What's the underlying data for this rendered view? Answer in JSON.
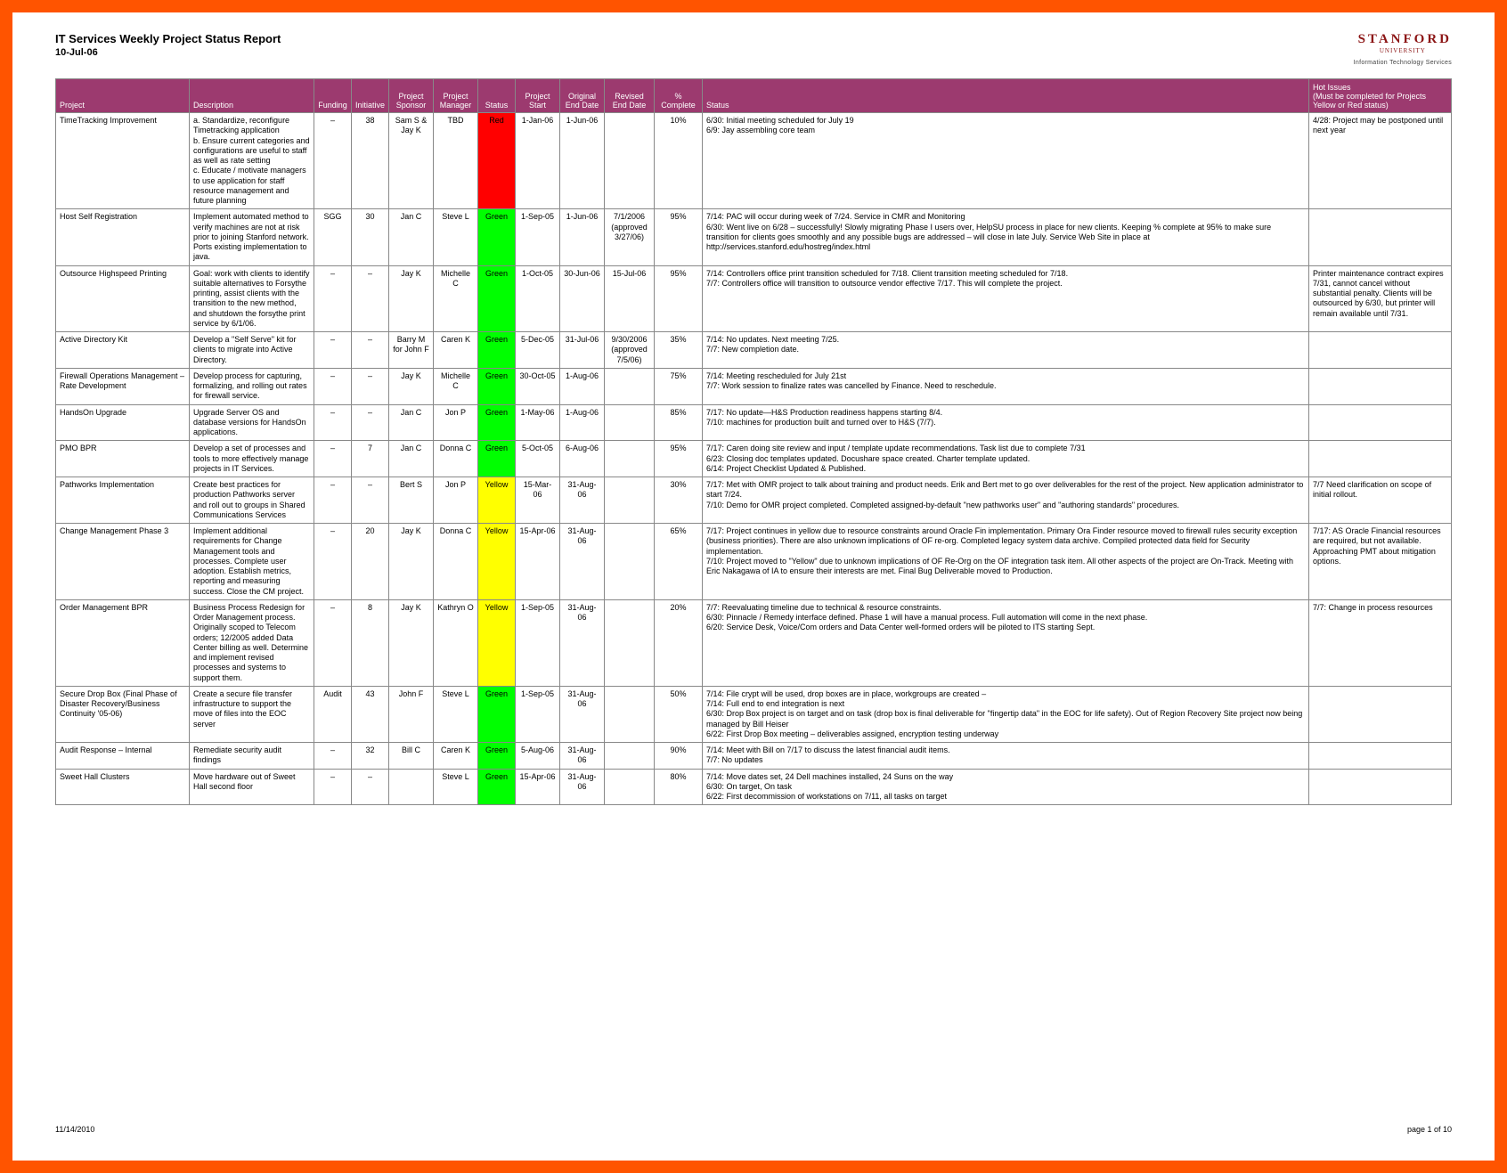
{
  "colors": {
    "frame_border": "#ff5400",
    "header_bg": "#9c3a6f",
    "header_fg": "#ffffff",
    "logo_color": "#8c1515",
    "grid_border": "#888888",
    "status_red": "#ff0000",
    "status_green": "#00ff00",
    "status_yellow": "#ffff00"
  },
  "header": {
    "title": "IT Services Weekly Project Status Report",
    "date": "10-Jul-06",
    "logo_main": "STANFORD",
    "logo_sub": "UNIVERSITY",
    "logo_tag": "Information Technology Services"
  },
  "columns": [
    "Project",
    "Description",
    "Funding",
    "Initiative",
    "Project Sponsor",
    "Project Manager",
    "Status",
    "Project Start",
    "Original End Date",
    "Revised End Date",
    "% Complete",
    "Status",
    "Hot Issues\n(Must be completed for Projects Yellow or Red status)"
  ],
  "status_map": {
    "Red": "#ff0000",
    "Green": "#00ff00",
    "Yellow": "#ffff00"
  },
  "rows": [
    {
      "project": "TimeTracking Improvement",
      "desc": "a. Standardize, reconfigure Timetracking application\nb. Ensure current categories and configurations are useful to staff as well as rate setting\nc. Educate / motivate managers to use application for staff resource management and future planning",
      "funding": "–",
      "initiative": "38",
      "sponsor": "Sam S & Jay K",
      "manager": "TBD",
      "status": "Red",
      "status_label": "Red",
      "start": "1-Jan-06",
      "oend": "1-Jun-06",
      "rend": "",
      "pct": "10%",
      "notes": "6/30: Initial meeting scheduled for July 19\n6/9: Jay assembling core team",
      "hot": "4/28: Project may be postponed until next year"
    },
    {
      "project": "Host Self Registration",
      "desc": "Implement automated method to verify machines are not at risk prior to joining Stanford network. Ports existing implementation to java.",
      "funding": "SGG",
      "initiative": "30",
      "sponsor": "Jan C",
      "manager": "Steve L",
      "status": "Green",
      "status_label": "Green",
      "start": "1-Sep-05",
      "oend": "1-Jun-06",
      "rend": "7/1/2006\n(approved 3/27/06)",
      "pct": "95%",
      "notes": "7/14: PAC will occur during week of 7/24. Service in CMR and Monitoring\n6/30: Went live on 6/28 – successfully! Slowly migrating Phase I users over, HelpSU process in place for new clients. Keeping % complete at 95% to make sure transition for clients goes smoothly and any possible bugs are addressed – will close in late July. Service Web Site in place at http://services.stanford.edu/hostreg/index.html",
      "hot": ""
    },
    {
      "project": "Outsource Highspeed Printing",
      "desc": "Goal: work with clients to identify suitable alternatives to Forsythe printing, assist clients with the transition to the new method, and shutdown the forsythe print service by 6/1/06.",
      "funding": "–",
      "initiative": "–",
      "sponsor": "Jay K",
      "manager": "Michelle C",
      "status": "Green",
      "status_label": "Green",
      "start": "1-Oct-05",
      "oend": "30-Jun-06",
      "rend": "15-Jul-06",
      "pct": "95%",
      "notes": "7/14: Controllers office print transition scheduled for 7/18. Client transition meeting scheduled for 7/18.\n7/7: Controllers office will transition to outsource vendor effective 7/17. This will complete the project.",
      "hot": "Printer maintenance contract expires 7/31, cannot cancel without substantial penalty. Clients will be outsourced by 6/30, but printer will remain available until 7/31."
    },
    {
      "project": "Active Directory Kit",
      "desc": "Develop a \"Self Serve\" kit for clients to migrate into Active Directory.",
      "funding": "–",
      "initiative": "–",
      "sponsor": "Barry M for John F",
      "manager": "Caren K",
      "status": "Green",
      "status_label": "Green",
      "start": "5-Dec-05",
      "oend": "31-Jul-06",
      "rend": "9/30/2006\n(approved 7/5/06)",
      "pct": "35%",
      "notes": "7/14: No updates. Next meeting 7/25.\n7/7: New completion date.",
      "hot": ""
    },
    {
      "project": "Firewall Operations Management – Rate Development",
      "desc": "Develop process for capturing, formalizing, and rolling out rates for firewall service.",
      "funding": "–",
      "initiative": "–",
      "sponsor": "Jay K",
      "manager": "Michelle C",
      "status": "Green",
      "status_label": "Green",
      "start": "30-Oct-05",
      "oend": "1-Aug-06",
      "rend": "",
      "pct": "75%",
      "notes": "7/14: Meeting rescheduled for July 21st\n7/7: Work session to finalize rates was cancelled by Finance. Need to reschedule.",
      "hot": ""
    },
    {
      "project": "HandsOn Upgrade",
      "desc": "Upgrade Server OS and database versions for HandsOn applications.",
      "funding": "–",
      "initiative": "–",
      "sponsor": "Jan C",
      "manager": "Jon P",
      "status": "Green",
      "status_label": "Green",
      "start": "1-May-06",
      "oend": "1-Aug-06",
      "rend": "",
      "pct": "85%",
      "notes": "7/17: No update—H&S Production readiness happens starting 8/4.\n7/10: machines for production built and turned over to H&S (7/7).",
      "hot": ""
    },
    {
      "project": "PMO BPR",
      "desc": "Develop a set of processes and tools to more effectively manage projects in IT Services.",
      "funding": "–",
      "initiative": "7",
      "sponsor": "Jan C",
      "manager": "Donna C",
      "status": "Green",
      "status_label": "Green",
      "start": "5-Oct-05",
      "oend": "6-Aug-06",
      "rend": "",
      "pct": "95%",
      "notes": "7/17: Caren doing site review and input / template update recommendations. Task list due to complete 7/31\n6/23: Closing doc templates updated. Docushare space created. Charter template updated.\n6/14: Project Checklist Updated & Published.",
      "hot": ""
    },
    {
      "project": "Pathworks Implementation",
      "desc": "Create best practices for production Pathworks server and roll out to groups in Shared Communications Services",
      "funding": "–",
      "initiative": "–",
      "sponsor": "Bert S",
      "manager": "Jon P",
      "status": "Yellow",
      "status_label": "Yellow",
      "start": "15-Mar-06",
      "oend": "31-Aug-06",
      "rend": "",
      "pct": "30%",
      "notes": "7/17: Met with OMR project to talk about training and product needs. Erik and Bert met to go over deliverables for the rest of the project. New application administrator to start 7/24.\n7/10: Demo for OMR project completed. Completed assigned-by-default \"new pathworks user\" and \"authoring standards\" procedures.",
      "hot": "7/7 Need clarification on scope of initial rollout."
    },
    {
      "project": "Change Management Phase 3",
      "desc": "Implement additional requirements for Change Management tools and processes. Complete user adoption. Establish metrics, reporting and measuring success. Close the CM project.",
      "funding": "–",
      "initiative": "20",
      "sponsor": "Jay K",
      "manager": "Donna C",
      "status": "Yellow",
      "status_label": "Yellow",
      "start": "15-Apr-06",
      "oend": "31-Aug-06",
      "rend": "",
      "pct": "65%",
      "notes": "7/17: Project continues in yellow due to resource constraints around Oracle Fin implementation. Primary Ora Finder resource moved to firewall rules security exception (business priorities). There are also unknown implications of OF re-org. Completed legacy system data archive. Compiled protected data field for Security implementation.\n7/10: Project moved to \"Yellow\" due to unknown implications of OF Re-Org on the OF integration task item. All other aspects of the project are On-Track. Meeting with Eric Nakagawa of IA to ensure their interests are met. Final Bug Deliverable moved to Production.",
      "hot": "7/17: AS Oracle Financial resources are required, but not available. Approaching PMT about mitigation options."
    },
    {
      "project": "Order Management BPR",
      "desc": "Business Process Redesign for Order Management process. Originally scoped to Telecom orders; 12/2005 added Data Center billing as well. Determine and implement revised processes and systems to support them.",
      "funding": "–",
      "initiative": "8",
      "sponsor": "Jay K",
      "manager": "Kathryn O",
      "status": "Yellow",
      "status_label": "Yellow",
      "start": "1-Sep-05",
      "oend": "31-Aug-06",
      "rend": "",
      "pct": "20%",
      "notes": "7/7: Reevaluating timeline due to technical & resource constraints.\n6/30: Pinnacle / Remedy interface defined. Phase 1 will have a manual process. Full automation will come in the next phase.\n6/20: Service Desk, Voice/Com orders and Data Center well-formed orders will be piloted to ITS starting Sept.",
      "hot": "7/7: Change in process resources"
    },
    {
      "project": "Secure Drop Box (Final Phase of Disaster Recovery/Business Continuity '05-06)",
      "desc": "Create a secure file transfer infrastructure to support the move of files into the EOC server",
      "funding": "Audit",
      "initiative": "43",
      "sponsor": "John F",
      "manager": "Steve L",
      "status": "Green",
      "status_label": "Green",
      "start": "1-Sep-05",
      "oend": "31-Aug-06",
      "rend": "",
      "pct": "50%",
      "notes": "7/14: File crypt will be used, drop boxes are in place, workgroups are created –\n7/14: Full end to end integration is next\n6/30: Drop Box project is on target and on task (drop box is final deliverable for \"fingertip data\" in the EOC for life safety). Out of Region Recovery Site project now being managed by Bill Heiser\n6/22: First Drop Box meeting – deliverables assigned, encryption testing underway",
      "hot": ""
    },
    {
      "project": "Audit Response – Internal",
      "desc": "Remediate security audit findings",
      "funding": "–",
      "initiative": "32",
      "sponsor": "Bill C",
      "manager": "Caren K",
      "status": "Green",
      "status_label": "Green",
      "start": "5-Aug-06",
      "oend": "31-Aug-06",
      "rend": "",
      "pct": "90%",
      "notes": "7/14: Meet with Bill on 7/17 to discuss the latest financial audit items.\n7/7: No updates",
      "hot": ""
    },
    {
      "project": "Sweet Hall Clusters",
      "desc": "Move hardware out of Sweet Hall second floor",
      "funding": "–",
      "initiative": "–",
      "sponsor": "",
      "manager": "Steve L",
      "status": "Green",
      "status_label": "Green",
      "start": "15-Apr-06",
      "oend": "31-Aug-06",
      "rend": "",
      "pct": "80%",
      "notes": "7/14: Move dates set, 24 Dell machines installed, 24 Suns on the way\n6/30: On target, On task\n6/22: First decommission of workstations on 7/11, all tasks on target",
      "hot": ""
    }
  ],
  "footer": {
    "left": "11/14/2010",
    "right": "page 1 of 10"
  }
}
